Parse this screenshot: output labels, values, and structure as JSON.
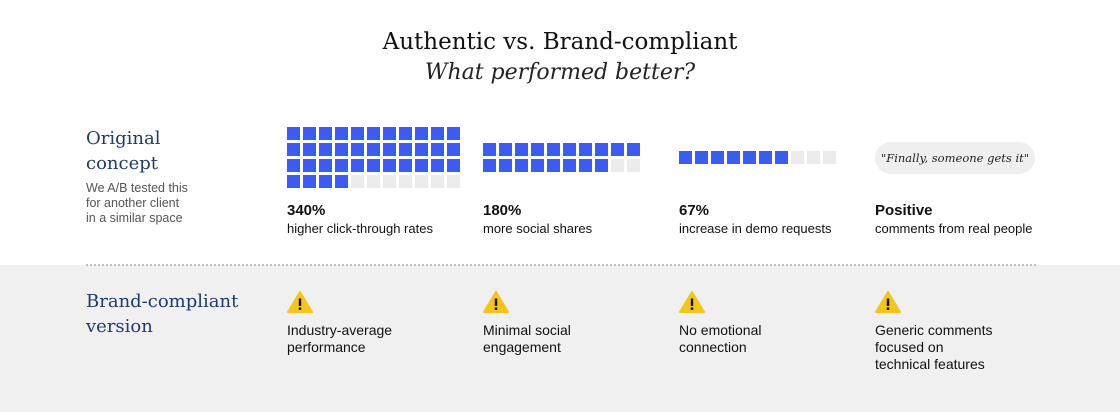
{
  "header": {
    "title": "Authentic vs. Brand-compliant",
    "subtitle": "What performed better?"
  },
  "rows": {
    "original": {
      "label_line1": "Original",
      "label_line2": "concept",
      "note_line1": "We A/B tested this",
      "note_line2": "for another client",
      "note_line3": "in a similar space"
    },
    "brand": {
      "label_line1": "Brand-compliant",
      "label_line2": "version"
    }
  },
  "chart_data": {
    "type": "waffle",
    "colors": {
      "filled": "#3a5cf5",
      "empty": "#ebebeb"
    },
    "series": [
      {
        "value": "340%",
        "label": "higher click-through rates",
        "filled_cells": 37,
        "total_cells": 44
      },
      {
        "value": "180%",
        "label": "more social shares",
        "filled_cells": 18,
        "total_cells": 20
      },
      {
        "value": "67%",
        "label": "increase in demo requests",
        "filled_cells": 7,
        "total_cells": 10
      }
    ],
    "qualitative": {
      "quote": "\"Finally, someone gets it\"",
      "value": "Positive",
      "label": "comments from real people"
    }
  },
  "brand_results": [
    {
      "icon": "warning-icon",
      "line1": "Industry-average",
      "line2": "performance",
      "line3": ""
    },
    {
      "icon": "warning-icon",
      "line1": "Minimal social",
      "line2": "engagement",
      "line3": ""
    },
    {
      "icon": "warning-icon",
      "line1": "No emotional",
      "line2": "connection",
      "line3": ""
    },
    {
      "icon": "warning-icon",
      "line1": "Generic comments",
      "line2": "focused on",
      "line3": "technical features"
    }
  ]
}
